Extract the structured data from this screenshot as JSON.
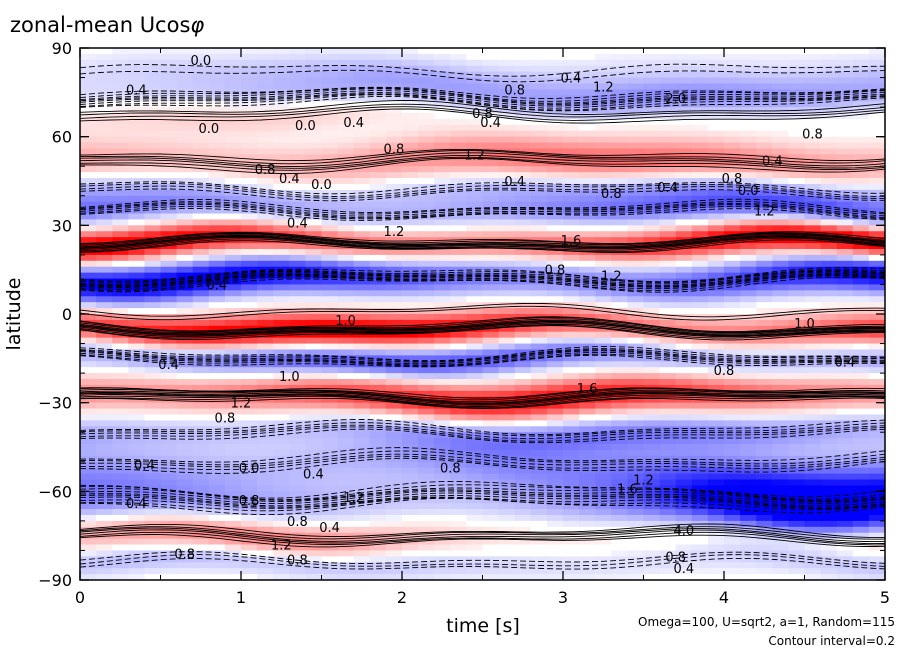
{
  "chart_data": {
    "type": "heatmap",
    "title": "zonal-mean Ucos",
    "title_symbol": "φ",
    "xlabel": "time [s]",
    "ylabel": "latitude",
    "xlim": [
      0,
      5
    ],
    "ylim": [
      -90,
      90
    ],
    "xticks": [
      0,
      1,
      2,
      3,
      4,
      5
    ],
    "xtick_labels": [
      "0",
      "1",
      "2",
      "3",
      "4",
      "5"
    ],
    "yticks": [
      90,
      60,
      30,
      0,
      -30,
      -60,
      -90
    ],
    "ytick_labels": [
      "90",
      "60",
      "30",
      "0",
      "−30",
      "−60",
      "−90"
    ],
    "colors": {
      "positive": "#ff0000",
      "negative": "#0000ff",
      "contour": "#000000"
    },
    "contour_interval": 0.2,
    "notes": [
      "Omega=100, U=sqrt2, a=1, Random=115",
      "Contour interval=0.2"
    ],
    "bands": [
      {
        "lat": 82,
        "value": -0.4,
        "width": 6
      },
      {
        "lat": 73,
        "value": -1.6,
        "width": 7,
        "t_peak": 4.2
      },
      {
        "lat": 68,
        "value": 0.8,
        "width": 6,
        "t_peak": 0.6
      },
      {
        "lat": 52,
        "value": 1.2,
        "width": 7
      },
      {
        "lat": 42,
        "value": -0.8,
        "width": 5
      },
      {
        "lat": 35,
        "value": -1.2,
        "width": 5
      },
      {
        "lat": 24,
        "value": 2.4,
        "width": 5
      },
      {
        "lat": 12,
        "value": -2.2,
        "width": 6
      },
      {
        "lat": 1,
        "value": 0.2,
        "width": 3
      },
      {
        "lat": -5,
        "value": 2.4,
        "width": 5
      },
      {
        "lat": -15,
        "value": -1.4,
        "width": 5
      },
      {
        "lat": -28,
        "value": 2.0,
        "width": 6
      },
      {
        "lat": -40,
        "value": -1.0,
        "width": 6
      },
      {
        "lat": -50,
        "value": -1.0,
        "width": 7,
        "t_peak": 2.0
      },
      {
        "lat": -62,
        "value": -2.4,
        "width": 10,
        "t_peak": 4.6
      },
      {
        "lat": -75,
        "value": 1.2,
        "width": 6,
        "t_peak": 1.2
      },
      {
        "lat": -84,
        "value": -0.6,
        "width": 5
      }
    ],
    "contour_labels": [
      {
        "t": 0.75,
        "lat": 86,
        "text": "0.0"
      },
      {
        "t": 0.35,
        "lat": 76,
        "text": "0.4"
      },
      {
        "t": 3.05,
        "lat": 80,
        "text": "0.4"
      },
      {
        "t": 2.7,
        "lat": 76,
        "text": "0.8"
      },
      {
        "t": 3.25,
        "lat": 77,
        "text": "1.2"
      },
      {
        "t": 3.7,
        "lat": 73,
        "text": "2.0"
      },
      {
        "t": 2.5,
        "lat": 68,
        "text": "0.8"
      },
      {
        "t": 2.55,
        "lat": 65,
        "text": "0.4"
      },
      {
        "t": 1.4,
        "lat": 64,
        "text": "0.0"
      },
      {
        "t": 1.7,
        "lat": 65,
        "text": "0.4"
      },
      {
        "t": 0.8,
        "lat": 63,
        "text": "0.0"
      },
      {
        "t": 1.95,
        "lat": 56,
        "text": "0.8"
      },
      {
        "t": 2.45,
        "lat": 54,
        "text": "1.2"
      },
      {
        "t": 4.55,
        "lat": 61,
        "text": "0.8"
      },
      {
        "t": 4.3,
        "lat": 52,
        "text": "0.4"
      },
      {
        "t": 1.15,
        "lat": 49,
        "text": "0.8"
      },
      {
        "t": 1.3,
        "lat": 46,
        "text": "0.4"
      },
      {
        "t": 1.5,
        "lat": 44,
        "text": "0.0"
      },
      {
        "t": 2.7,
        "lat": 45,
        "text": "0.4"
      },
      {
        "t": 3.3,
        "lat": 41,
        "text": "0.8"
      },
      {
        "t": 3.65,
        "lat": 43,
        "text": "0.4"
      },
      {
        "t": 4.05,
        "lat": 46,
        "text": "0.8"
      },
      {
        "t": 4.15,
        "lat": 42,
        "text": "0.0"
      },
      {
        "t": 4.25,
        "lat": 35,
        "text": "1.2"
      },
      {
        "t": 1.35,
        "lat": 31,
        "text": "0.4"
      },
      {
        "t": 1.95,
        "lat": 28,
        "text": "1.2"
      },
      {
        "t": 3.05,
        "lat": 25,
        "text": "1.6"
      },
      {
        "t": 2.95,
        "lat": 15,
        "text": "0.8"
      },
      {
        "t": 3.3,
        "lat": 13,
        "text": "1.2"
      },
      {
        "t": 0.85,
        "lat": 10,
        "text": "0.4"
      },
      {
        "t": 1.65,
        "lat": -2,
        "text": "1.0"
      },
      {
        "t": 4.5,
        "lat": -3,
        "text": "1.0"
      },
      {
        "t": 0.55,
        "lat": -17,
        "text": "0.4"
      },
      {
        "t": 4.75,
        "lat": -16,
        "text": "0.4"
      },
      {
        "t": 1.3,
        "lat": -21,
        "text": "1.0"
      },
      {
        "t": 4.0,
        "lat": -19,
        "text": "0.8"
      },
      {
        "t": 3.15,
        "lat": -25,
        "text": "1.6"
      },
      {
        "t": 1.0,
        "lat": -30,
        "text": "1.2"
      },
      {
        "t": 0.9,
        "lat": -35,
        "text": "0.8"
      },
      {
        "t": 0.4,
        "lat": -51,
        "text": "0.4"
      },
      {
        "t": 1.05,
        "lat": -52,
        "text": "0.0"
      },
      {
        "t": 1.45,
        "lat": -54,
        "text": "0.4"
      },
      {
        "t": 2.3,
        "lat": -52,
        "text": "0.8"
      },
      {
        "t": 0.35,
        "lat": -64,
        "text": "0.4"
      },
      {
        "t": 1.05,
        "lat": -63,
        "text": "0.8"
      },
      {
        "t": 1.7,
        "lat": -62,
        "text": "1.2"
      },
      {
        "t": 3.4,
        "lat": -59,
        "text": "1.6"
      },
      {
        "t": 3.5,
        "lat": -56,
        "text": "1.2"
      },
      {
        "t": 1.35,
        "lat": -70,
        "text": "0.8"
      },
      {
        "t": 1.55,
        "lat": -72,
        "text": "0.4"
      },
      {
        "t": 3.75,
        "lat": -73,
        "text": "4.0"
      },
      {
        "t": 1.25,
        "lat": -78,
        "text": "1.2"
      },
      {
        "t": 0.65,
        "lat": -81,
        "text": "0.8"
      },
      {
        "t": 1.35,
        "lat": -83,
        "text": "0.8"
      },
      {
        "t": 3.7,
        "lat": -82,
        "text": "0.8"
      },
      {
        "t": 3.75,
        "lat": -86,
        "text": "0.4"
      }
    ]
  }
}
